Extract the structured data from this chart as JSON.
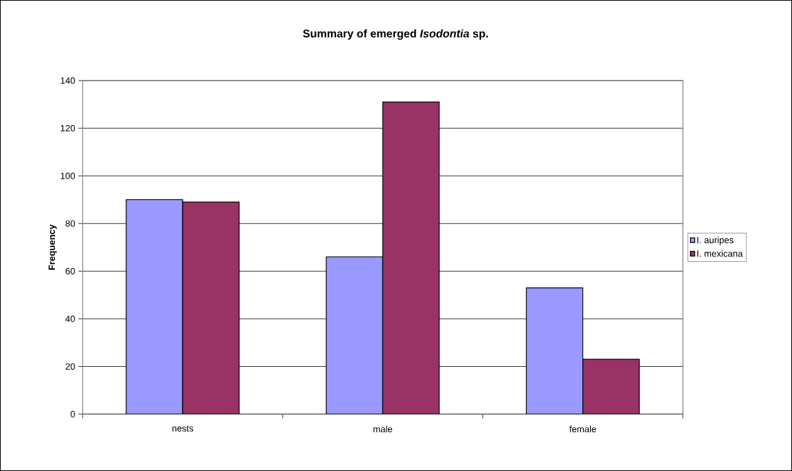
{
  "chart_data": {
    "type": "bar",
    "title": "Summary of emerged *Isodontia* sp.",
    "ylabel": "Frequency",
    "categories": [
      "nests",
      "male",
      "female"
    ],
    "series": [
      {
        "name": "I. auripes",
        "color": "#9999ff",
        "values": [
          90,
          66,
          53
        ]
      },
      {
        "name": "I. mexicana",
        "color": "#993366",
        "values": [
          89,
          131,
          23
        ]
      }
    ],
    "ylim": [
      0,
      140
    ],
    "yticks": [
      0,
      20,
      40,
      60,
      80,
      100,
      120,
      140
    ],
    "grid": "y",
    "legend": "right"
  }
}
